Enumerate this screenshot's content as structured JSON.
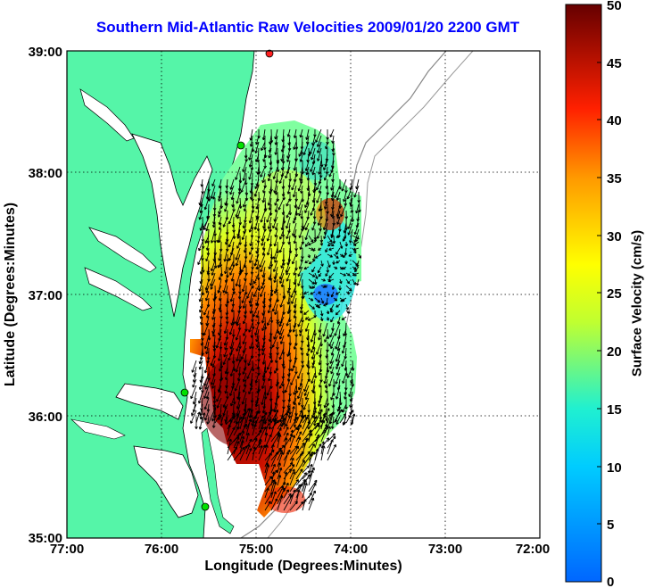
{
  "title": "Southern Mid-Atlantic Raw Velocities 2009/01/20 2200 GMT",
  "map": {
    "xlabel": "Longitude (Degrees:Minutes)",
    "ylabel": "Latitude (Degrees:Minutes)",
    "x_ticks": [
      "77:00",
      "76:00",
      "75:00",
      "74:00",
      "73:00",
      "72:00"
    ],
    "y_ticks": [
      "39:00",
      "38:00",
      "37:00",
      "36:00",
      "35:00"
    ],
    "grid": "dotted",
    "land_color": "#55f5a8",
    "station_markers": [
      {
        "color": "#00e000"
      },
      {
        "color": "#00e000"
      },
      {
        "color": "#00e000"
      },
      {
        "color": "#ff2020"
      }
    ]
  },
  "colorbar": {
    "label": "Surface Velocity (cm/s)",
    "ticks": [
      "0",
      "5",
      "10",
      "15",
      "20",
      "25",
      "30",
      "35",
      "40",
      "45",
      "50"
    ],
    "min": 0,
    "max": 50,
    "colormap": "jet"
  }
}
